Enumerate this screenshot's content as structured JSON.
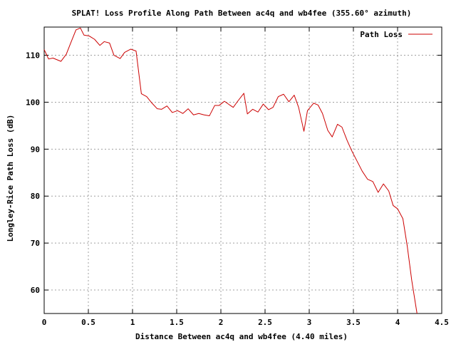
{
  "chart_data": {
    "type": "line",
    "title": "SPLAT! Loss Profile Along Path Between ac4q and wb4fee (355.60° azimuth)",
    "xlabel": "Distance Between ac4q and wb4fee (4.40 miles)",
    "ylabel": "Longley-Rice Path Loss (dB)",
    "xlim": [
      0,
      4.5
    ],
    "ylim": [
      55,
      116
    ],
    "x_ticks": [
      0,
      0.5,
      1,
      1.5,
      2,
      2.5,
      3,
      3.5,
      4,
      4.5
    ],
    "x_tick_labels": [
      "0",
      "0.5",
      "1",
      "1.5",
      "2",
      "2.5",
      "3",
      "3.5",
      "4",
      "4.5"
    ],
    "y_ticks": [
      60,
      70,
      80,
      90,
      100,
      110
    ],
    "y_tick_labels": [
      "60",
      "70",
      "80",
      "90",
      "100",
      "110"
    ],
    "grid": true,
    "legend_position": "top-right",
    "line_color": "#cc0000",
    "series": [
      {
        "name": "Path Loss",
        "points": [
          [
            0.0,
            111.2
          ],
          [
            0.05,
            109.2
          ],
          [
            0.1,
            109.4
          ],
          [
            0.19,
            108.7
          ],
          [
            0.25,
            110.2
          ],
          [
            0.3,
            112.6
          ],
          [
            0.36,
            115.4
          ],
          [
            0.41,
            115.8
          ],
          [
            0.45,
            114.3
          ],
          [
            0.51,
            114.1
          ],
          [
            0.57,
            113.4
          ],
          [
            0.63,
            112.1
          ],
          [
            0.68,
            112.9
          ],
          [
            0.74,
            112.6
          ],
          [
            0.79,
            110.0
          ],
          [
            0.86,
            109.3
          ],
          [
            0.91,
            110.6
          ],
          [
            0.98,
            111.3
          ],
          [
            1.04,
            110.9
          ],
          [
            1.1,
            101.8
          ],
          [
            1.16,
            101.2
          ],
          [
            1.22,
            99.8
          ],
          [
            1.28,
            98.6
          ],
          [
            1.33,
            98.5
          ],
          [
            1.39,
            99.2
          ],
          [
            1.45,
            97.8
          ],
          [
            1.51,
            98.2
          ],
          [
            1.57,
            97.6
          ],
          [
            1.63,
            98.6
          ],
          [
            1.69,
            97.3
          ],
          [
            1.75,
            97.6
          ],
          [
            1.81,
            97.3
          ],
          [
            1.87,
            97.1
          ],
          [
            1.93,
            99.3
          ],
          [
            1.98,
            99.3
          ],
          [
            2.04,
            100.2
          ],
          [
            2.1,
            99.4
          ],
          [
            2.14,
            98.9
          ],
          [
            2.19,
            100.2
          ],
          [
            2.26,
            101.9
          ],
          [
            2.3,
            97.5
          ],
          [
            2.36,
            98.5
          ],
          [
            2.42,
            97.9
          ],
          [
            2.48,
            99.6
          ],
          [
            2.54,
            98.4
          ],
          [
            2.59,
            98.9
          ],
          [
            2.65,
            101.2
          ],
          [
            2.71,
            101.7
          ],
          [
            2.77,
            100.1
          ],
          [
            2.83,
            101.5
          ],
          [
            2.88,
            98.9
          ],
          [
            2.94,
            93.8
          ],
          [
            2.98,
            98.2
          ],
          [
            3.05,
            99.8
          ],
          [
            3.1,
            99.4
          ],
          [
            3.15,
            97.6
          ],
          [
            3.21,
            94.0
          ],
          [
            3.26,
            92.6
          ],
          [
            3.32,
            95.3
          ],
          [
            3.37,
            94.7
          ],
          [
            3.43,
            91.8
          ],
          [
            3.48,
            89.7
          ],
          [
            3.54,
            87.5
          ],
          [
            3.6,
            85.3
          ],
          [
            3.66,
            83.6
          ],
          [
            3.72,
            83.1
          ],
          [
            3.78,
            80.8
          ],
          [
            3.84,
            82.6
          ],
          [
            3.9,
            81.1
          ],
          [
            3.95,
            78.0
          ],
          [
            4.0,
            77.3
          ],
          [
            4.06,
            75.2
          ],
          [
            4.11,
            69.3
          ],
          [
            4.16,
            62.1
          ],
          [
            4.22,
            55.0
          ]
        ]
      }
    ]
  }
}
